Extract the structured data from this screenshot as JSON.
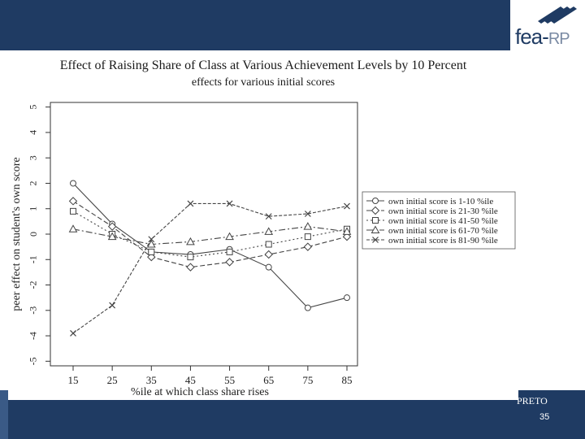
{
  "slide": {
    "logo_main": "fea",
    "logo_sub": "RP",
    "footer_text": "PRETO",
    "page_number": "35"
  },
  "colors": {
    "header": "#1f3b63",
    "line": "#444444"
  },
  "chart_data": {
    "type": "line",
    "title": "Effect of Raising Share of Class at Various Achievement Levels by 10 Percent",
    "subtitle": "effects for various initial scores",
    "xlabel": "%ile at which class share rises",
    "ylabel": "peer effect on student's own score",
    "x": [
      15,
      25,
      35,
      45,
      55,
      65,
      75,
      85
    ],
    "xticks": [
      "15",
      "25",
      "35",
      "45",
      "55",
      "65",
      "75",
      "85"
    ],
    "ylim": [
      -5,
      5
    ],
    "yticks": [
      "-5",
      "-4",
      "-3",
      "-2",
      "-1",
      "0",
      "1",
      "2",
      "3",
      "4",
      "5"
    ],
    "legend_position": "right",
    "series": [
      {
        "name": "own initial score is 1-10 %ile",
        "marker": "circle",
        "values": [
          2.0,
          0.4,
          -0.7,
          -0.8,
          -0.6,
          -1.3,
          -2.9,
          -2.5
        ]
      },
      {
        "name": "own initial score is 21-30 %ile",
        "marker": "diamond",
        "values": [
          1.3,
          0.3,
          -0.9,
          -1.3,
          -1.1,
          -0.8,
          -0.5,
          -0.1
        ]
      },
      {
        "name": "own initial score is 41-50 %ile",
        "marker": "square",
        "values": [
          0.9,
          0.0,
          -0.7,
          -0.9,
          -0.7,
          -0.4,
          -0.1,
          0.2
        ]
      },
      {
        "name": "own initial score is 61-70 %ile",
        "marker": "triangle",
        "values": [
          0.2,
          -0.1,
          -0.4,
          -0.3,
          -0.1,
          0.1,
          0.3,
          0.1
        ]
      },
      {
        "name": "own initial score is 81-90 %ile",
        "marker": "x",
        "values": [
          -3.9,
          -2.8,
          -0.2,
          1.2,
          1.2,
          0.7,
          0.8,
          1.1
        ]
      }
    ]
  }
}
